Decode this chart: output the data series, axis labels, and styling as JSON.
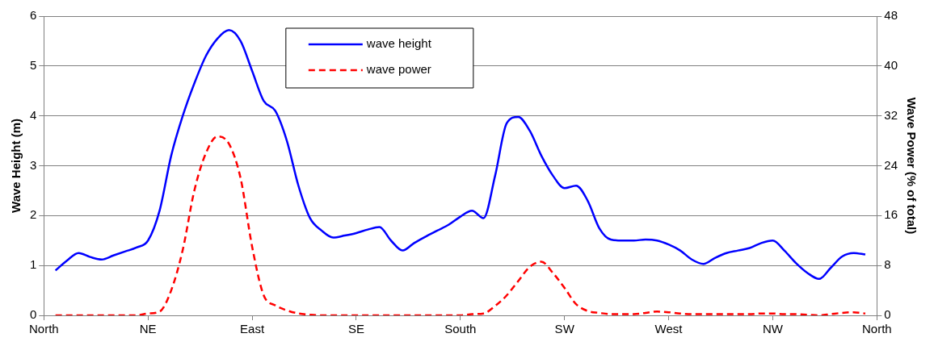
{
  "chart_data": {
    "type": "line",
    "ylabel": "Wave Height (m)",
    "y2label": "Wave Power (% of total)",
    "categories": [
      "North",
      null,
      null,
      null,
      null,
      null,
      null,
      null,
      null,
      "NE",
      null,
      null,
      null,
      null,
      null,
      null,
      null,
      null,
      "East",
      null,
      null,
      null,
      null,
      null,
      null,
      null,
      null,
      "SE",
      null,
      null,
      null,
      null,
      null,
      null,
      null,
      null,
      "South",
      null,
      null,
      null,
      null,
      null,
      null,
      null,
      null,
      "SW",
      null,
      null,
      null,
      null,
      null,
      null,
      null,
      null,
      "West",
      null,
      null,
      null,
      null,
      null,
      null,
      null,
      null,
      "NW",
      null,
      null,
      null,
      null,
      null,
      null,
      null,
      null,
      "North"
    ],
    "ylim": [
      0,
      6
    ],
    "yticks": [
      0,
      1,
      2,
      3,
      4,
      5,
      6
    ],
    "y2lim": [
      0,
      48
    ],
    "y2ticks": [
      0,
      8,
      16,
      24,
      32,
      40,
      48
    ],
    "grid": "y",
    "legend": "top",
    "marker": "none",
    "series": [
      {
        "name": "wave height",
        "color": "#0000ff",
        "line_style": "solid",
        "values": [
          null,
          0.9,
          1.1,
          1.25,
          1.17,
          1.12,
          1.2,
          1.28,
          1.36,
          1.5,
          2.1,
          3.2,
          4.0,
          4.65,
          5.2,
          5.55,
          5.72,
          5.5,
          4.9,
          4.3,
          4.1,
          3.5,
          2.6,
          1.95,
          1.7,
          1.56,
          1.6,
          1.65,
          1.72,
          1.77,
          1.5,
          1.3,
          1.45,
          1.58,
          1.7,
          1.82,
          1.98,
          2.1,
          1.95,
          2.8,
          3.85,
          3.98,
          3.7,
          3.2,
          2.8,
          2.55,
          2.6,
          2.3,
          1.75,
          1.52,
          1.5,
          1.5,
          1.52,
          1.5,
          1.42,
          1.3,
          1.12,
          1.03,
          1.15,
          1.25,
          1.3,
          1.35,
          1.45,
          1.5,
          1.3,
          1.05,
          0.85,
          0.73,
          0.95,
          1.18,
          1.25,
          1.22,
          null
        ]
      },
      {
        "name": "wave power",
        "color": "#ff0000",
        "line_style": "dashed",
        "axis": "y2",
        "values": [
          null,
          0,
          0,
          0,
          0,
          0,
          0,
          0,
          0,
          0.3,
          0.6,
          4,
          10.5,
          20,
          26,
          28.7,
          27.5,
          22,
          11,
          3.2,
          1.6,
          0.8,
          0.3,
          0.1,
          0,
          0,
          0,
          0,
          0,
          0,
          0,
          0,
          0,
          0,
          0,
          0,
          0,
          0.2,
          0.3,
          1.5,
          3.2,
          5.5,
          7.8,
          8.6,
          6.8,
          4.4,
          1.8,
          0.7,
          0.4,
          0.2,
          0.2,
          0.2,
          0.4,
          0.6,
          0.5,
          0.3,
          0.2,
          0.2,
          0.2,
          0.2,
          0.2,
          0.2,
          0.3,
          0.3,
          0.2,
          0.2,
          0.1,
          0,
          0.2,
          0.4,
          0.5,
          0.3,
          null
        ]
      }
    ]
  }
}
